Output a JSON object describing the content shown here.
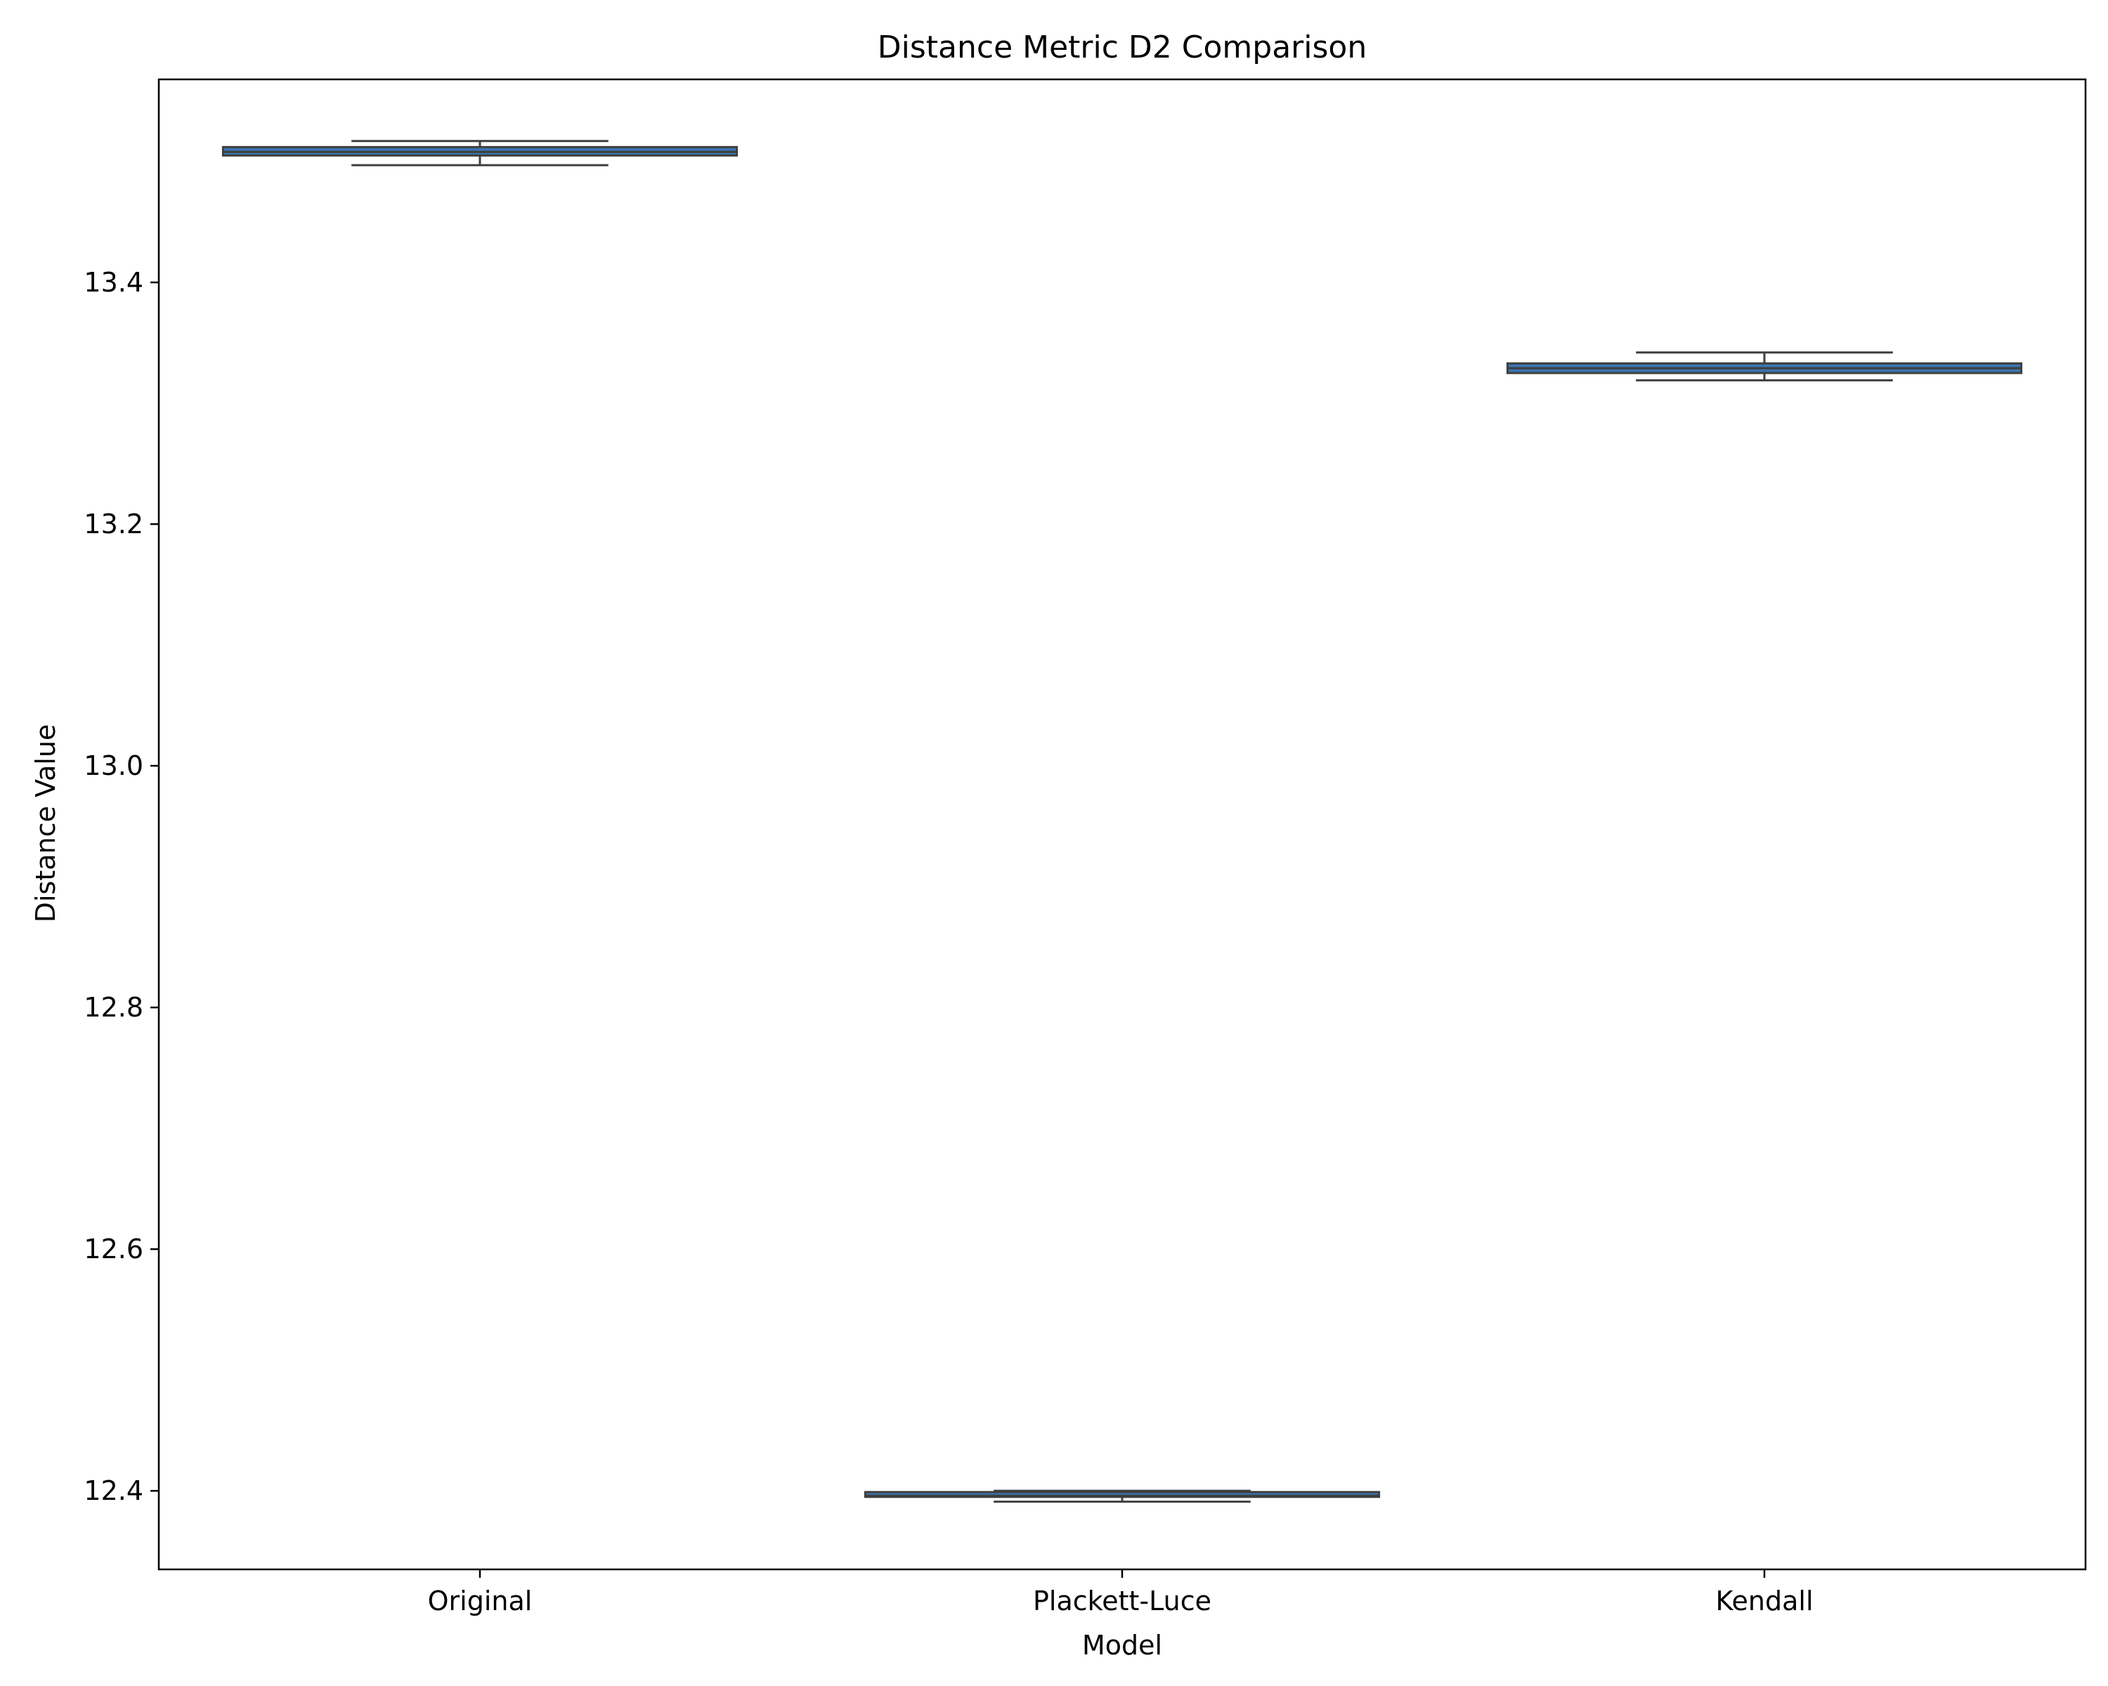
{
  "chart_data": {
    "type": "box",
    "title": "Distance Metric D2 Comparison",
    "xlabel": "Model",
    "ylabel": "Distance Value",
    "ylim": [
      12.335,
      13.568
    ],
    "yticks": [
      "12.4",
      "12.6",
      "12.8",
      "13.0",
      "13.2",
      "13.4"
    ],
    "grid": false,
    "categories": [
      "Original",
      "Plackett-Luce",
      "Kendall"
    ],
    "boxes": [
      {
        "category": "Original",
        "whisker_low": 13.497,
        "q1": 13.505,
        "median": 13.508,
        "q3": 13.512,
        "whisker_high": 13.517
      },
      {
        "category": "Plackett-Luce",
        "whisker_low": 12.391,
        "q1": 12.395,
        "median": 12.396,
        "q3": 12.399,
        "whisker_high": 12.4
      },
      {
        "category": "Kendall",
        "whisker_low": 13.319,
        "q1": 13.325,
        "median": 13.329,
        "q3": 13.333,
        "whisker_high": 13.342
      }
    ],
    "colors": {
      "box_fill": "#3b75af",
      "box_line": "#3f3f3f",
      "median_line": "#3f3f3f",
      "axes": "#000000"
    }
  }
}
